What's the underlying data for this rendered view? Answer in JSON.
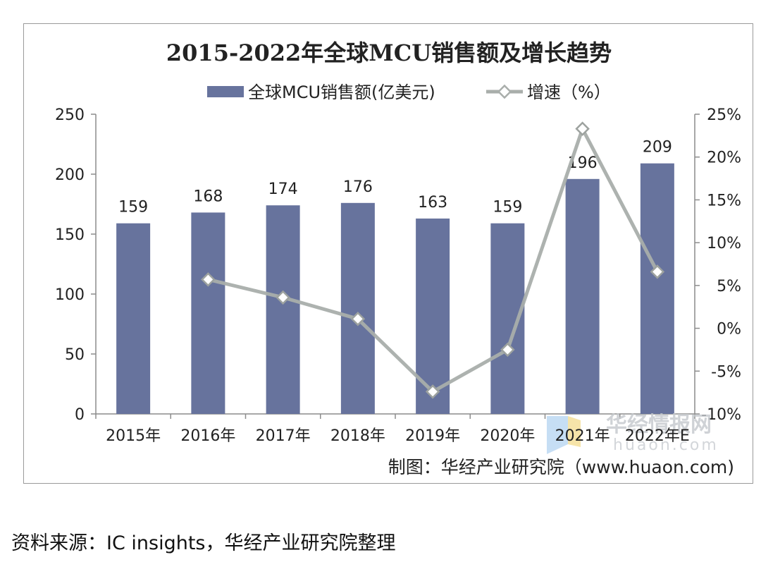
{
  "chart_data": {
    "type": "bar+line",
    "title": "2015-2022年全球MCU销售额及增长趋势",
    "categories": [
      "2015年",
      "2016年",
      "2017年",
      "2018年",
      "2019年",
      "2020年",
      "2021年",
      "2022年E"
    ],
    "series": [
      {
        "name": "全球MCU销售额(亿美元)",
        "type": "bar",
        "axis": "left",
        "color": "#67739d",
        "values": [
          159,
          168,
          174,
          176,
          163,
          159,
          196,
          209
        ],
        "data_labels": [
          "159",
          "168",
          "174",
          "176",
          "163",
          "159",
          "196",
          "209"
        ]
      },
      {
        "name": "增速（%）",
        "type": "line",
        "axis": "right",
        "color": "#a9aeab",
        "values": [
          null,
          5.7,
          3.6,
          1.1,
          -7.4,
          -2.5,
          23.3,
          6.6
        ]
      }
    ],
    "y_left": {
      "min": 0,
      "max": 250,
      "ticks": [
        "0",
        "50",
        "100",
        "150",
        "200",
        "250"
      ]
    },
    "y_right": {
      "min": -10,
      "max": 25,
      "ticks": [
        "-10%",
        "-5%",
        "0%",
        "5%",
        "10%",
        "15%",
        "20%",
        "25%"
      ]
    },
    "legend_position": "top-center"
  },
  "credit": "制图：华经产业研究院（www.huaon.com)",
  "watermark": {
    "text": "华经情报网",
    "sub": "huaon.com"
  },
  "source_note": "资料来源：IC insights，华经产业研究院整理"
}
